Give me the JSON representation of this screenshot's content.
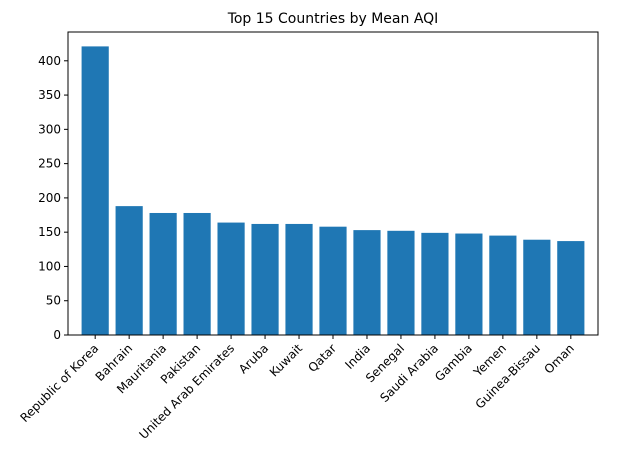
{
  "chart_data": {
    "type": "bar",
    "title": "Top 15 Countries by Mean AQI",
    "xlabel": "",
    "ylabel": "",
    "categories": [
      "Republic of Korea",
      "Bahrain",
      "Mauritania",
      "Pakistan",
      "United Arab Emirates",
      "Aruba",
      "Kuwait",
      "Qatar",
      "India",
      "Senegal",
      "Saudi Arabia",
      "Gambia",
      "Yemen",
      "Guinea-Bissau",
      "Oman"
    ],
    "values": [
      421,
      188,
      178,
      178,
      164,
      162,
      162,
      158,
      153,
      152,
      149,
      148,
      145,
      139,
      137
    ],
    "ylim": [
      0,
      442
    ],
    "yticks": [
      0,
      50,
      100,
      150,
      200,
      250,
      300,
      350,
      400
    ],
    "bar_color": "#1f77b4",
    "grid": false,
    "legend": "none"
  }
}
